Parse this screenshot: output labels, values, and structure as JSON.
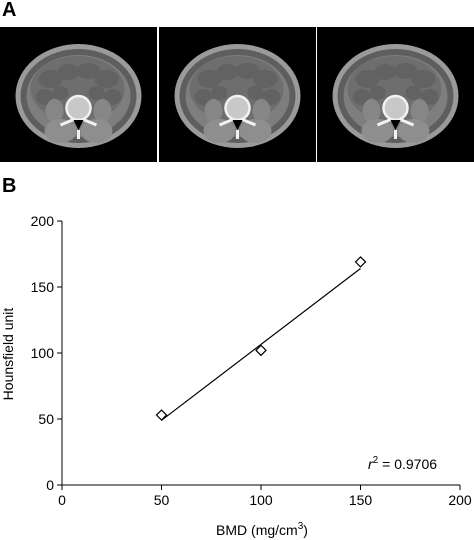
{
  "panels": {
    "a_label": "A",
    "b_label": "B"
  },
  "ct_images": [
    {
      "name": "ct-slice-1"
    },
    {
      "name": "ct-slice-2"
    },
    {
      "name": "ct-slice-3"
    }
  ],
  "chart_data": {
    "type": "scatter",
    "x": [
      50,
      100,
      150
    ],
    "y": [
      53,
      102,
      169
    ],
    "xlim": [
      0,
      200
    ],
    "ylim": [
      0,
      200
    ],
    "xticks": [
      0,
      50,
      100,
      150,
      200
    ],
    "yticks": [
      0,
      50,
      100,
      150,
      200
    ],
    "xlabel": "BMD (mg/cm3)",
    "xlabel_base": "BMD (mg/cm",
    "xlabel_sup": "3",
    "xlabel_end": ")",
    "ylabel": "Hounsfield unit",
    "fit_line": {
      "x": [
        50,
        150
      ],
      "y": [
        49,
        164
      ]
    },
    "annotation": {
      "r_label": "r",
      "r_sup": "2",
      "value_text": " = 0.9706"
    },
    "marker": "diamond",
    "grid": false
  }
}
